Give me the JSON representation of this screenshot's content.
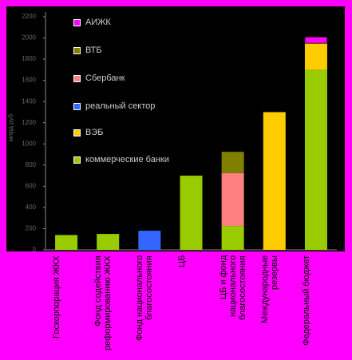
{
  "chart_data": {
    "type": "stacked_bar",
    "y_label": "млрд руб",
    "categories": [
      "Госкорпорация ЖКХ",
      "Фонд содействия реформированию ЖКХ",
      "Фонд национального благосостояния",
      "ЦБ",
      "ЦБ и фонд национального благосостояния",
      "Международные резервы",
      "Федеральный бюджет"
    ],
    "series": [
      {
        "name": "АИЖК",
        "color": "#ff00ff",
        "values": [
          null,
          null,
          null,
          null,
          null,
          null,
          60
        ]
      },
      {
        "name": "ВТБ",
        "color": "#808000",
        "values": [
          null,
          null,
          null,
          null,
          200,
          null,
          null
        ]
      },
      {
        "name": "Сбербанк",
        "color": "#ff8080",
        "values": [
          null,
          null,
          null,
          null,
          500,
          null,
          null
        ]
      },
      {
        "name": "реальный сектор",
        "color": "#3366ff",
        "values": [
          null,
          null,
          180,
          null,
          null,
          null,
          null
        ]
      },
      {
        "name": "ВЭБ",
        "color": "#ffcc00",
        "values": [
          null,
          null,
          null,
          null,
          null,
          1300,
          250
        ]
      },
      {
        "name": "коммерческие банки",
        "color": "#99cc00",
        "values": [
          140,
          150,
          null,
          700,
          225,
          null,
          1700
        ]
      }
    ],
    "ylim": [
      0,
      2200
    ],
    "yticks": [
      0,
      200,
      400,
      600,
      800,
      1000,
      1200,
      1400,
      1600,
      1800,
      2000,
      2200
    ]
  }
}
